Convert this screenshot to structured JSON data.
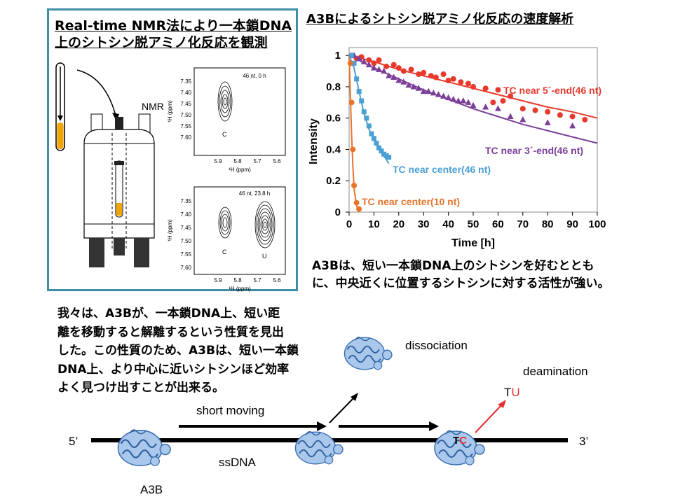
{
  "nmr_panel": {
    "title_line1": "Real-time NMR法により一本鎖DNA",
    "title_line2": "上のシトシン脱アミノ化反応を観測",
    "nmr_label": "NMR",
    "spectrum_top": {
      "label": "46 nt, 0 h",
      "peak": "C",
      "y_ticks": [
        "7.35",
        "7.40",
        "7.45",
        "7.50",
        "7.55",
        "7.60"
      ],
      "x_ticks": [
        "5.9",
        "5.8",
        "5.7",
        "5.6"
      ],
      "y_axis": "¹H (ppm)",
      "x_axis": "¹H (ppm)"
    },
    "spectrum_bottom": {
      "label": "46 nt, 23.8 h",
      "peaks": [
        "C",
        "U"
      ],
      "y_ticks": [
        "7.35",
        "7.40",
        "7.45",
        "7.50",
        "7.55",
        "7.60"
      ],
      "x_ticks": [
        "5.9",
        "5.8",
        "5.7",
        "5.6"
      ],
      "y_axis": "¹H (ppm)",
      "x_axis": "¹H (ppm)"
    }
  },
  "rate_title": "A3Bによるシトシン脱アミノ化反応の速度解析",
  "chart_data": {
    "type": "scatter",
    "xlabel": "Time [h]",
    "ylabel": "Intensity",
    "xlim": [
      0,
      100
    ],
    "ylim": [
      0,
      1.05
    ],
    "x_ticks": [
      0,
      10,
      20,
      30,
      40,
      50,
      60,
      70,
      80,
      90,
      100
    ],
    "y_ticks": [
      0,
      0.2,
      0.4,
      0.6,
      0.8,
      1
    ],
    "series": [
      {
        "name": "TC near 5´-end(46 nt)",
        "color": "#e8392c",
        "marker": "circle",
        "x": [
          1,
          3,
          5,
          8,
          10,
          12,
          15,
          18,
          20,
          22,
          25,
          28,
          30,
          33,
          35,
          38,
          40,
          42,
          45,
          48,
          50,
          55,
          58,
          60,
          62,
          65,
          70,
          75,
          80,
          85,
          90,
          95
        ],
        "y": [
          1.0,
          0.98,
          0.99,
          0.97,
          0.95,
          0.97,
          0.93,
          0.94,
          0.92,
          0.9,
          0.91,
          0.88,
          0.89,
          0.87,
          0.86,
          0.88,
          0.84,
          0.85,
          0.83,
          0.82,
          0.8,
          0.79,
          0.7,
          0.78,
          0.71,
          0.74,
          0.66,
          0.65,
          0.64,
          0.62,
          0.61,
          0.59
        ],
        "fit_x": [
          0,
          10,
          20,
          30,
          40,
          50,
          60,
          70,
          80,
          90,
          100
        ],
        "fit_y": [
          1.0,
          0.96,
          0.91,
          0.87,
          0.83,
          0.79,
          0.75,
          0.71,
          0.67,
          0.64,
          0.6
        ]
      },
      {
        "name": "TC near 3´-end(46 nt)",
        "color": "#7b3f98",
        "marker": "triangle",
        "x": [
          2,
          4,
          6,
          8,
          10,
          12,
          14,
          16,
          18,
          20,
          22,
          24,
          26,
          28,
          30,
          32,
          34,
          36,
          38,
          40,
          42,
          44,
          46,
          48,
          50,
          55,
          60,
          65,
          70,
          80,
          90
        ],
        "y": [
          1.0,
          0.98,
          0.96,
          0.94,
          0.92,
          0.91,
          0.9,
          0.87,
          0.86,
          0.84,
          0.83,
          0.81,
          0.8,
          0.79,
          0.77,
          0.77,
          0.76,
          0.75,
          0.74,
          0.73,
          0.72,
          0.71,
          0.71,
          0.7,
          0.68,
          0.67,
          0.66,
          0.61,
          0.59,
          0.57,
          0.55
        ],
        "fit_x": [
          0,
          10,
          20,
          30,
          40,
          50,
          60,
          70,
          80,
          90,
          100
        ],
        "fit_y": [
          1.0,
          0.92,
          0.85,
          0.78,
          0.72,
          0.66,
          0.61,
          0.56,
          0.52,
          0.48,
          0.44
        ]
      },
      {
        "name": "TC near center(46 nt)",
        "color": "#4a9fd4",
        "marker": "square",
        "x": [
          1,
          2,
          3,
          4,
          5,
          6,
          7,
          8,
          9,
          10,
          11,
          12,
          13,
          14,
          15,
          16
        ],
        "y": [
          1.0,
          0.95,
          0.85,
          0.77,
          0.71,
          0.64,
          0.6,
          0.55,
          0.5,
          0.47,
          0.44,
          0.41,
          0.39,
          0.37,
          0.36,
          0.35
        ],
        "fit_x": [
          0,
          2,
          4,
          6,
          8,
          10,
          12,
          14,
          16
        ],
        "fit_y": [
          1.0,
          0.92,
          0.77,
          0.63,
          0.53,
          0.46,
          0.4,
          0.36,
          0.31
        ]
      },
      {
        "name": "TC near center(10 nt)",
        "color": "#e8732c",
        "marker": "circle",
        "x": [
          0.5,
          1,
          1.5,
          2,
          3,
          4
        ],
        "y": [
          0.95,
          0.7,
          0.4,
          0.17,
          0.06,
          0.02
        ],
        "fit_x": [
          0,
          0.5,
          1,
          1.5,
          2,
          3,
          4
        ],
        "fit_y": [
          1.0,
          0.75,
          0.5,
          0.3,
          0.15,
          0.04,
          0.0
        ]
      }
    ]
  },
  "conclusion_line1": "A3Bは、短い一本鎖DNA上のシトシンを好むととも",
  "conclusion_line2": "に、中央近くに位置するシトシンに対する活性が強い。",
  "finding_lines": [
    "我々は、A3Bが、一本鎖DNA上、短い距",
    "離を移動すると解離するという性質を見出",
    "した。この性質のため、A3Bは、短い一本鎖",
    "DNA上、より中心に近いシトシンほど効率",
    "よく見つけ出すことが出来る。"
  ],
  "diagram": {
    "five_prime": "5’",
    "three_prime": "3’",
    "ssdna": "ssDNA",
    "a3b": "A3B",
    "short_moving": "short moving",
    "dissociation": "dissociation",
    "deamination": "deamination",
    "tc_t": "T",
    "tc_c": "C",
    "tu_t": "T",
    "tu_u": "U"
  }
}
